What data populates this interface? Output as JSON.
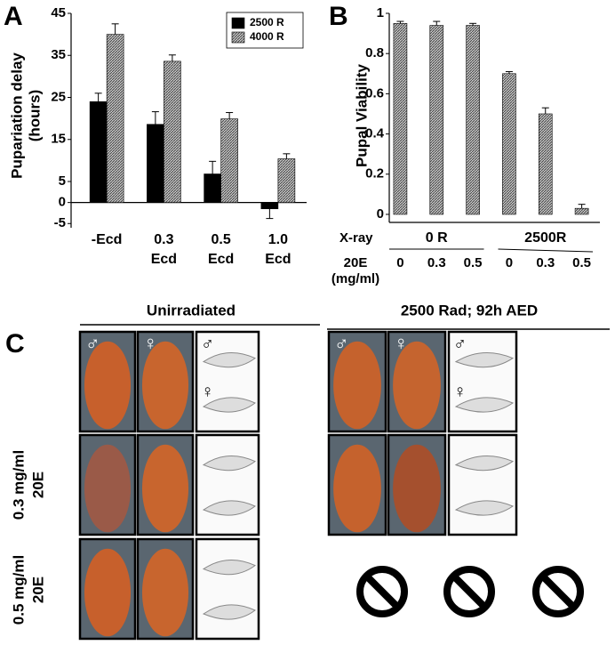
{
  "chart_data": [
    {
      "type": "bar",
      "panel_label": "A",
      "ylabel": [
        "Pupariation delay",
        "(hours)"
      ],
      "categories": [
        [
          "-Ecd"
        ],
        [
          "0.3",
          "Ecd"
        ],
        [
          "0.5",
          "Ecd"
        ],
        [
          "1.0",
          "Ecd"
        ]
      ],
      "series": [
        {
          "name": "2500 R",
          "color": "#000000",
          "values": [
            24,
            18.6,
            6.8,
            -1.5
          ],
          "errors": [
            2,
            3,
            3,
            2.3
          ]
        },
        {
          "name": "4000 R",
          "color": "#8a8a8a",
          "pattern": "hatch",
          "values": [
            40,
            33.6,
            19.9,
            10.4
          ],
          "errors": [
            2.5,
            1.5,
            1.5,
            1.2
          ]
        }
      ],
      "ylim": [
        -6,
        45
      ],
      "yticks": [
        45,
        35,
        25,
        15,
        5,
        0,
        -5
      ],
      "legend": "upper right"
    },
    {
      "type": "bar",
      "panel_label": "B",
      "ylabel": [
        "Pupal Viability"
      ],
      "xray_label": "X-ray",
      "groups": [
        "0 R",
        "2500R"
      ],
      "treatment_label": [
        "20E",
        "(mg/ml)"
      ],
      "categories": [
        "0",
        "0.3",
        "0.5",
        "0",
        "0.3",
        "0.5"
      ],
      "series": [
        {
          "name": null,
          "color": "#8a8a8a",
          "pattern": "hatch",
          "values": [
            0.95,
            0.94,
            0.94,
            0.7,
            0.5,
            0.03
          ],
          "errors": [
            0.01,
            0.02,
            0.01,
            0.01,
            0.03,
            0.02
          ]
        }
      ],
      "ylim": [
        -0.04,
        1
      ],
      "yticks": [
        0,
        0.2,
        0.4,
        0.6,
        0.8,
        1
      ]
    }
  ],
  "panel_c": {
    "label": "C",
    "columns": [
      "Unirradiated",
      "2500 Rad; 92h AED"
    ],
    "rows": [
      [
        "0.3 mg/ml",
        "20E"
      ],
      [
        "0.5 mg/ml",
        "20E"
      ]
    ],
    "male": "♂",
    "female": "♀"
  }
}
